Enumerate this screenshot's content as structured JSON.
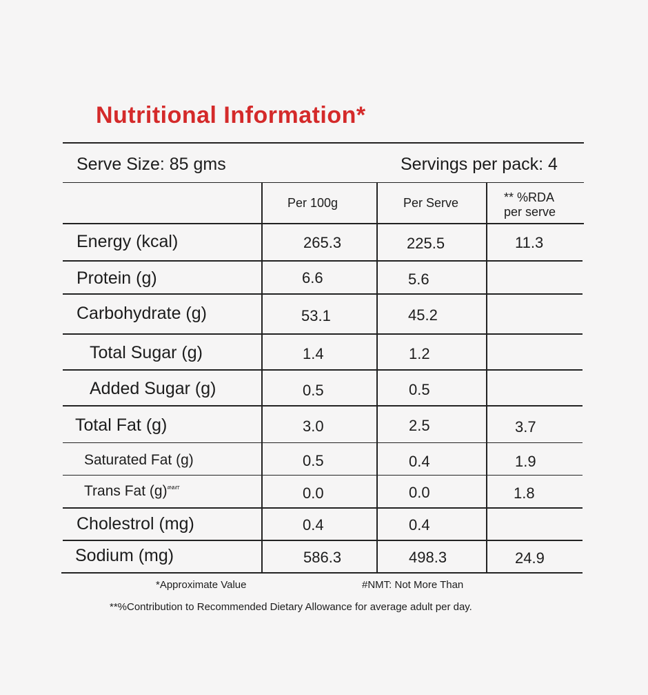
{
  "title": "Nutritional Information*",
  "serve_size": "Serve Size: 85 gms",
  "servings_per_pack": "Servings per pack: 4",
  "columns": {
    "per100g": "Per 100g",
    "per_serve": "Per Serve",
    "rda_line1": "** %RDA",
    "rda_line2": "per serve"
  },
  "rows": [
    {
      "label": "Energy (kcal)",
      "per100g": "265.3",
      "per_serve": "225.5",
      "rda": "11.3"
    },
    {
      "label": "Protein (g)",
      "per100g": "6.6",
      "per_serve": "5.6",
      "rda": ""
    },
    {
      "label": "Carbohydrate (g)",
      "per100g": "53.1",
      "per_serve": "45.2",
      "rda": ""
    },
    {
      "label": "Total Sugar (g)",
      "per100g": "1.4",
      "per_serve": "1.2",
      "rda": ""
    },
    {
      "label": "Added Sugar (g)",
      "per100g": "0.5",
      "per_serve": "0.5",
      "rda": ""
    },
    {
      "label": "Total Fat (g)",
      "per100g": "3.0",
      "per_serve": "2.5",
      "rda": "3.7"
    },
    {
      "label": "Saturated Fat (g)",
      "per100g": "0.5",
      "per_serve": "0.4",
      "rda": "1.9"
    },
    {
      "label": "Trans Fat (g)",
      "label_sup": "#NMT",
      "per100g": "0.0",
      "per_serve": "0.0",
      "rda": "1.8"
    },
    {
      "label": "Cholestrol (mg)",
      "per100g": "0.4",
      "per_serve": "0.4",
      "rda": ""
    },
    {
      "label": "Sodium (mg)",
      "per100g": "586.3",
      "per_serve": "498.3",
      "rda": "24.9"
    }
  ],
  "footnotes": {
    "approx": "*Approximate Value",
    "nmt": "#NMT: Not More Than",
    "rda": "**%Contribution to Recommended Dietary Allowance for average adult per day."
  }
}
